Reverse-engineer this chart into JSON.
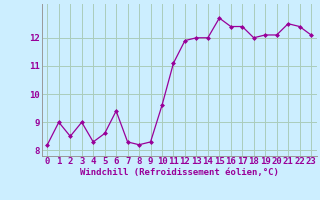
{
  "x": [
    0,
    1,
    2,
    3,
    4,
    5,
    6,
    7,
    8,
    9,
    10,
    11,
    12,
    13,
    14,
    15,
    16,
    17,
    18,
    19,
    20,
    21,
    22,
    23
  ],
  "y": [
    8.2,
    9.0,
    8.5,
    9.0,
    8.3,
    8.6,
    9.4,
    8.3,
    8.2,
    8.3,
    9.6,
    11.1,
    11.9,
    12.0,
    12.0,
    12.7,
    12.4,
    12.4,
    12.0,
    12.1,
    12.1,
    12.5,
    12.4,
    12.1
  ],
  "line_color": "#990099",
  "marker": "D",
  "marker_size": 2,
  "bg_color": "#cceeff",
  "grid_color": "#aaccbb",
  "xlabel": "Windchill (Refroidissement éolien,°C)",
  "xlabel_color": "#990099",
  "tick_color": "#990099",
  "ylim": [
    7.8,
    13.2
  ],
  "xlim": [
    -0.5,
    23.5
  ],
  "yticks": [
    8,
    9,
    10,
    11,
    12
  ],
  "font_size": 6.5
}
